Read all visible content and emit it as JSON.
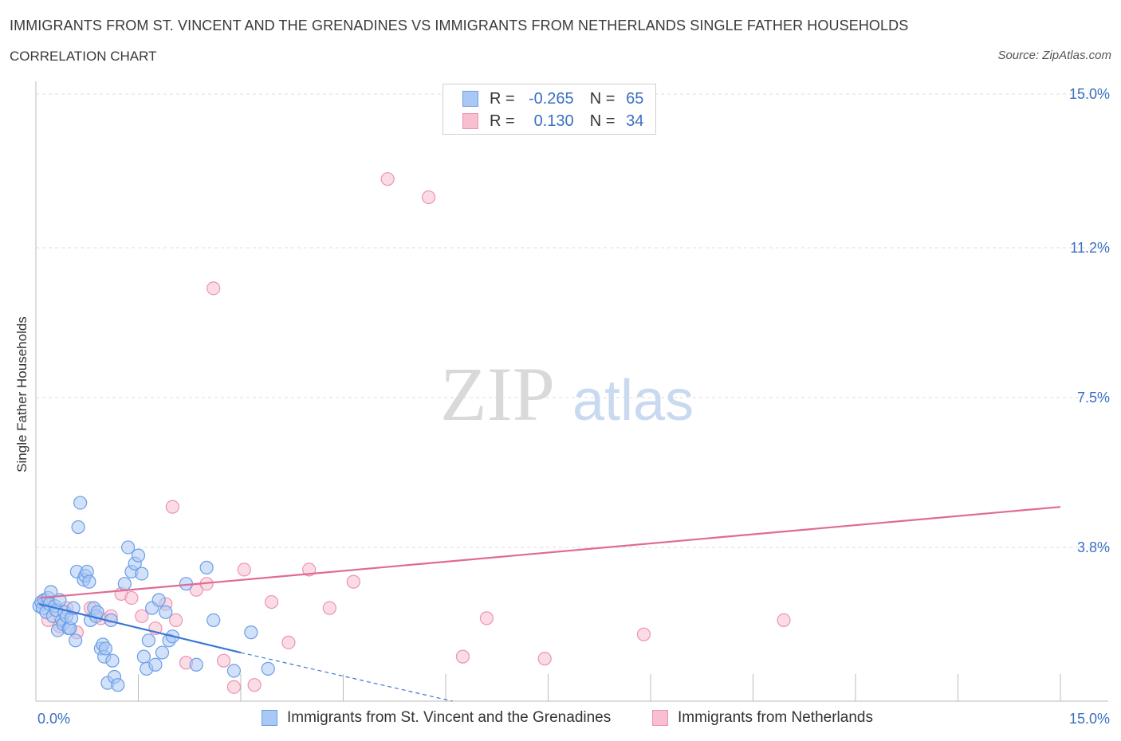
{
  "header": {
    "title": "IMMIGRANTS FROM ST. VINCENT AND THE GRENADINES VS IMMIGRANTS FROM NETHERLANDS SINGLE FATHER HOUSEHOLDS",
    "subtitle": "CORRELATION CHART",
    "source": "Source: ZipAtlas.com"
  },
  "watermark": {
    "zip": "ZIP",
    "atlas": "atlas"
  },
  "legend": {
    "rows": [
      {
        "r_label": "R =",
        "r_value": "-0.265",
        "n_label": "N =",
        "n_value": "65",
        "color": "#7aaaf0"
      },
      {
        "r_label": "R =",
        "r_value": "0.130",
        "n_label": "N =",
        "n_value": "34",
        "color": "#f4a8c0"
      }
    ]
  },
  "bottom_legend": {
    "series_a": "Immigrants from St. Vincent and the Grenadines",
    "series_b": "Immigrants from Netherlands"
  },
  "colors": {
    "blue_fill": "#a9c8f4",
    "blue_stroke": "#6b9de6",
    "blue_line": "#3a78d4",
    "pink_fill": "#f7bfd0",
    "pink_stroke": "#ec93b0",
    "pink_line": "#e06a94",
    "tick": "#3a6fc4"
  },
  "chart_data": {
    "type": "scatter",
    "title": "IMMIGRANTS FROM ST. VINCENT AND THE GRENADINES VS IMMIGRANTS FROM NETHERLANDS SINGLE FATHER HOUSEHOLDS",
    "xlabel": "",
    "ylabel": "Single Father Households",
    "xlim": [
      0,
      15
    ],
    "ylim": [
      0,
      15
    ],
    "x_tick_labels": [
      "0.0%",
      "15.0%"
    ],
    "y_ticks": [
      {
        "value": 3.8,
        "label": "3.8%"
      },
      {
        "value": 7.5,
        "label": "7.5%"
      },
      {
        "value": 11.2,
        "label": "11.2%"
      },
      {
        "value": 15.0,
        "label": "15.0%"
      }
    ],
    "series": [
      {
        "name": "Immigrants from St. Vincent and the Grenadines",
        "r": -0.265,
        "n": 65,
        "points": [
          [
            0.05,
            2.35
          ],
          [
            0.08,
            2.45
          ],
          [
            0.1,
            2.3
          ],
          [
            0.12,
            2.5
          ],
          [
            0.15,
            2.2
          ],
          [
            0.18,
            2.55
          ],
          [
            0.2,
            2.4
          ],
          [
            0.22,
            2.7
          ],
          [
            0.25,
            2.1
          ],
          [
            0.28,
            2.35
          ],
          [
            0.3,
            2.25
          ],
          [
            0.32,
            1.75
          ],
          [
            0.35,
            2.5
          ],
          [
            0.38,
            2.0
          ],
          [
            0.4,
            1.9
          ],
          [
            0.42,
            2.2
          ],
          [
            0.45,
            2.1
          ],
          [
            0.48,
            1.8
          ],
          [
            0.5,
            1.8
          ],
          [
            0.52,
            2.05
          ],
          [
            0.55,
            2.3
          ],
          [
            0.58,
            1.5
          ],
          [
            0.6,
            3.2
          ],
          [
            0.62,
            4.3
          ],
          [
            0.65,
            4.9
          ],
          [
            0.7,
            3.0
          ],
          [
            0.72,
            3.1
          ],
          [
            0.75,
            3.2
          ],
          [
            0.78,
            2.95
          ],
          [
            0.8,
            2.0
          ],
          [
            0.85,
            2.3
          ],
          [
            0.88,
            2.1
          ],
          [
            0.9,
            2.2
          ],
          [
            0.95,
            1.3
          ],
          [
            0.98,
            1.4
          ],
          [
            1.0,
            1.1
          ],
          [
            1.02,
            1.3
          ],
          [
            1.05,
            0.45
          ],
          [
            1.1,
            2.0
          ],
          [
            1.12,
            1.0
          ],
          [
            1.15,
            0.6
          ],
          [
            1.2,
            0.4
          ],
          [
            1.3,
            2.9
          ],
          [
            1.35,
            3.8
          ],
          [
            1.4,
            3.2
          ],
          [
            1.45,
            3.4
          ],
          [
            1.5,
            3.6
          ],
          [
            1.55,
            3.15
          ],
          [
            1.58,
            1.1
          ],
          [
            1.62,
            0.8
          ],
          [
            1.65,
            1.5
          ],
          [
            1.7,
            2.3
          ],
          [
            1.75,
            0.9
          ],
          [
            1.8,
            2.5
          ],
          [
            1.85,
            1.2
          ],
          [
            1.9,
            2.2
          ],
          [
            1.95,
            1.5
          ],
          [
            2.0,
            1.6
          ],
          [
            2.2,
            2.9
          ],
          [
            2.35,
            0.9
          ],
          [
            2.5,
            3.3
          ],
          [
            2.6,
            2.0
          ],
          [
            2.9,
            0.75
          ],
          [
            3.15,
            1.7
          ],
          [
            3.4,
            0.8
          ]
        ],
        "trend": {
          "x0": 0.05,
          "y0": 2.4,
          "x1": 3.0,
          "y1": 1.2,
          "dash_x1": 6.1,
          "dash_y1": 0.0
        }
      },
      {
        "name": "Immigrants from Netherlands",
        "r": 0.13,
        "n": 34,
        "points": [
          [
            5.15,
            12.9
          ],
          [
            5.75,
            12.45
          ],
          [
            2.6,
            10.2
          ],
          [
            2.0,
            4.8
          ],
          [
            0.18,
            2.0
          ],
          [
            0.35,
            1.85
          ],
          [
            0.45,
            2.3
          ],
          [
            0.6,
            1.7
          ],
          [
            0.8,
            2.3
          ],
          [
            0.95,
            2.05
          ],
          [
            1.1,
            2.1
          ],
          [
            1.25,
            2.65
          ],
          [
            1.4,
            2.55
          ],
          [
            1.55,
            2.1
          ],
          [
            1.75,
            1.8
          ],
          [
            1.9,
            2.4
          ],
          [
            2.05,
            2.0
          ],
          [
            2.2,
            0.95
          ],
          [
            2.35,
            2.75
          ],
          [
            2.5,
            2.9
          ],
          [
            2.75,
            1.0
          ],
          [
            2.9,
            0.35
          ],
          [
            3.05,
            3.25
          ],
          [
            3.2,
            0.4
          ],
          [
            3.45,
            2.45
          ],
          [
            3.7,
            1.45
          ],
          [
            4.0,
            3.25
          ],
          [
            4.3,
            2.3
          ],
          [
            4.65,
            2.95
          ],
          [
            6.25,
            1.1
          ],
          [
            6.6,
            2.05
          ],
          [
            7.45,
            1.05
          ],
          [
            8.9,
            1.65
          ],
          [
            10.95,
            2.0
          ]
        ],
        "trend": {
          "x0": 0.05,
          "y0": 2.55,
          "x1": 15.0,
          "y1": 4.8
        }
      }
    ]
  }
}
